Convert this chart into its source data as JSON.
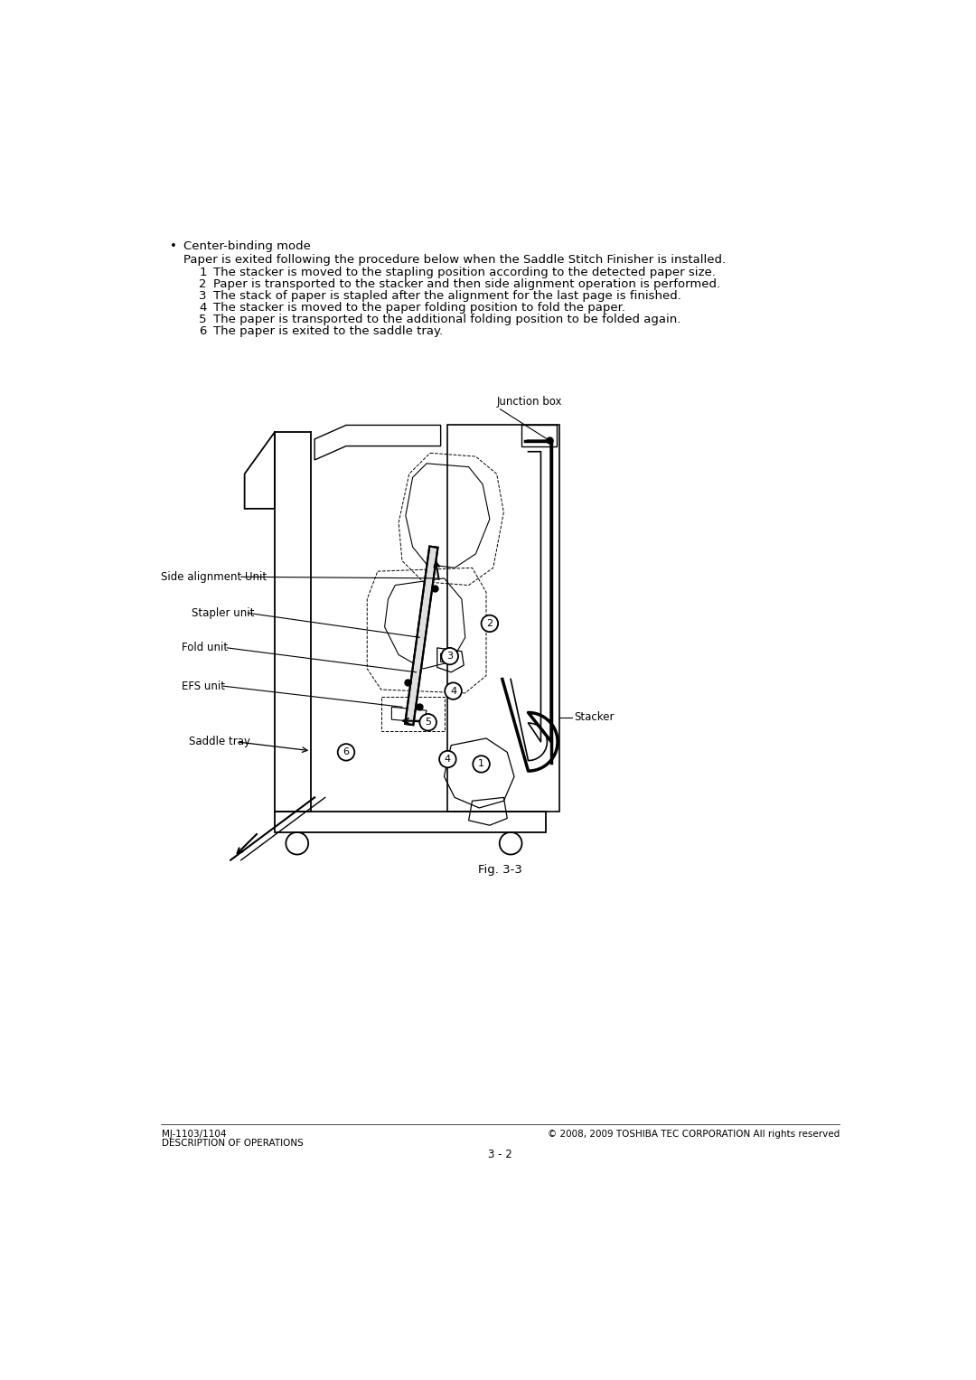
{
  "bg_color": "#ffffff",
  "text_color": "#000000",
  "bullet_text": "Center-binding mode",
  "intro_text": "Paper is exited following the procedure below when the Saddle Stitch Finisher is installed.",
  "steps": [
    "The stacker is moved to the stapling position according to the detected paper size.",
    "Paper is transported to the stacker and then side alignment operation is performed.",
    "The stack of paper is stapled after the alignment for the last page is finished.",
    "The stacker is moved to the paper folding position to fold the paper.",
    "The paper is transported to the additional folding position to be folded again.",
    "The paper is exited to the saddle tray."
  ],
  "fig_caption": "Fig. 3-3",
  "footer_left_line1": "MJ-1103/1104",
  "footer_left_line2": "DESCRIPTION OF OPERATIONS",
  "footer_right": "© 2008, 2009 TOSHIBA TEC CORPORATION All rights reserved",
  "footer_center": "3 - 2",
  "labels": {
    "junction_box": "Junction box",
    "side_alignment": "Side alignment Unit",
    "stapler_unit": "Stapler unit",
    "fold_unit": "Fold unit",
    "efs_unit": "EFS unit",
    "saddle_tray": "Saddle tray",
    "stacker": "Stacker"
  },
  "font_size_body": 9.5,
  "font_size_footer": 7.5,
  "font_size_label": 8.5,
  "font_size_caption": 9.5
}
